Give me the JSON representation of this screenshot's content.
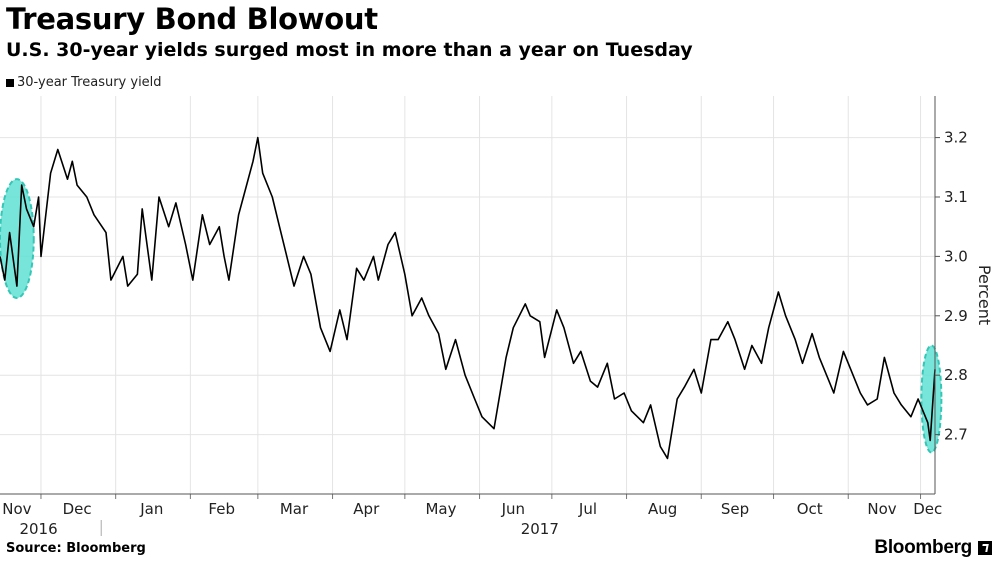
{
  "header": {
    "title": "Treasury Bond Blowout",
    "subtitle": "U.S. 30-year yields surged most in more than a year on Tuesday"
  },
  "footer": {
    "source": "Source: Bloomberg",
    "brand": "Bloomberg"
  },
  "colors": {
    "line": "#000000",
    "highlight_fill": "#5fe0d2",
    "highlight_stroke": "#35c6b6",
    "grid": "#e4e4e4"
  },
  "chart_data": {
    "type": "line",
    "title": "Treasury Bond Blowout",
    "subtitle": "U.S. 30-year yields surged most in more than a year on Tuesday",
    "xlabel": "",
    "ylabel": "Percent",
    "ylim": [
      2.6,
      3.27
    ],
    "yticks": [
      2.7,
      2.8,
      2.9,
      3.0,
      3.1,
      3.2
    ],
    "ytick_labels": [
      "2.7",
      "2.8",
      "2.9",
      "3.0",
      "3.1",
      "3.2"
    ],
    "xlim": [
      "2016-11-14",
      "2017-12-07"
    ],
    "month_ticks": [
      {
        "label": "Nov",
        "date": "2016-11-21"
      },
      {
        "label": "Dec",
        "date": "2016-12-16"
      },
      {
        "label": "Jan",
        "date": "2017-01-16"
      },
      {
        "label": "Feb",
        "date": "2017-02-14"
      },
      {
        "label": "Mar",
        "date": "2017-03-16"
      },
      {
        "label": "Apr",
        "date": "2017-04-15"
      },
      {
        "label": "May",
        "date": "2017-05-16"
      },
      {
        "label": "Jun",
        "date": "2017-06-15"
      },
      {
        "label": "Jul",
        "date": "2017-07-16"
      },
      {
        "label": "Aug",
        "date": "2017-08-16"
      },
      {
        "label": "Sep",
        "date": "2017-09-15"
      },
      {
        "label": "Oct",
        "date": "2017-10-16"
      },
      {
        "label": "Nov",
        "date": "2017-11-15"
      },
      {
        "label": "Dec",
        "date": "2017-12-04"
      }
    ],
    "year_labels": [
      {
        "label": "2016",
        "date": "2016-11-30"
      },
      {
        "label": "2017",
        "date": "2017-06-26"
      }
    ],
    "grid": true,
    "legend": {
      "position": "top-left",
      "entries": [
        "30-year Treasury yield"
      ]
    },
    "series": [
      {
        "name": "30-year Treasury yield",
        "x": [
          "2016-11-14",
          "2016-11-16",
          "2016-11-18",
          "2016-11-21",
          "2016-11-23",
          "2016-11-25",
          "2016-11-28",
          "2016-11-30",
          "2016-12-01",
          "2016-12-05",
          "2016-12-08",
          "2016-12-12",
          "2016-12-14",
          "2016-12-16",
          "2016-12-20",
          "2016-12-23",
          "2016-12-28",
          "2016-12-30",
          "2017-01-04",
          "2017-01-06",
          "2017-01-10",
          "2017-01-12",
          "2017-01-16",
          "2017-01-19",
          "2017-01-23",
          "2017-01-26",
          "2017-01-30",
          "2017-02-02",
          "2017-02-06",
          "2017-02-09",
          "2017-02-13",
          "2017-02-15",
          "2017-02-17",
          "2017-02-21",
          "2017-02-23",
          "2017-02-27",
          "2017-03-01",
          "2017-03-03",
          "2017-03-07",
          "2017-03-10",
          "2017-03-13",
          "2017-03-16",
          "2017-03-20",
          "2017-03-23",
          "2017-03-27",
          "2017-03-31",
          "2017-04-04",
          "2017-04-07",
          "2017-04-11",
          "2017-04-14",
          "2017-04-18",
          "2017-04-20",
          "2017-04-24",
          "2017-04-27",
          "2017-05-01",
          "2017-05-04",
          "2017-05-08",
          "2017-05-11",
          "2017-05-15",
          "2017-05-18",
          "2017-05-22",
          "2017-05-26",
          "2017-05-30",
          "2017-06-02",
          "2017-06-07",
          "2017-06-12",
          "2017-06-15",
          "2017-06-20",
          "2017-06-22",
          "2017-06-26",
          "2017-06-28",
          "2017-07-03",
          "2017-07-06",
          "2017-07-10",
          "2017-07-13",
          "2017-07-17",
          "2017-07-20",
          "2017-07-24",
          "2017-07-27",
          "2017-07-31",
          "2017-08-03",
          "2017-08-08",
          "2017-08-11",
          "2017-08-15",
          "2017-08-18",
          "2017-08-22",
          "2017-08-25",
          "2017-08-29",
          "2017-09-01",
          "2017-09-05",
          "2017-09-08",
          "2017-09-12",
          "2017-09-15",
          "2017-09-19",
          "2017-09-22",
          "2017-09-26",
          "2017-09-29",
          "2017-10-03",
          "2017-10-06",
          "2017-10-10",
          "2017-10-13",
          "2017-10-17",
          "2017-10-20",
          "2017-10-24",
          "2017-10-26",
          "2017-10-30",
          "2017-11-02",
          "2017-11-06",
          "2017-11-09",
          "2017-11-13",
          "2017-11-16",
          "2017-11-20",
          "2017-11-23",
          "2017-11-27",
          "2017-11-30",
          "2017-12-04",
          "2017-12-05",
          "2017-12-06",
          "2017-12-07"
        ],
        "y": [
          3.0,
          2.96,
          3.04,
          2.95,
          3.12,
          3.08,
          3.05,
          3.1,
          3.0,
          3.14,
          3.18,
          3.13,
          3.16,
          3.12,
          3.1,
          3.07,
          3.04,
          2.96,
          3.0,
          2.95,
          2.97,
          3.08,
          2.96,
          3.1,
          3.05,
          3.09,
          3.02,
          2.96,
          3.07,
          3.02,
          3.05,
          3.0,
          2.96,
          3.07,
          3.1,
          3.16,
          3.2,
          3.14,
          3.1,
          3.05,
          3.0,
          2.95,
          3.0,
          2.97,
          2.88,
          2.84,
          2.91,
          2.86,
          2.98,
          2.96,
          3.0,
          2.96,
          3.02,
          3.04,
          2.97,
          2.9,
          2.93,
          2.9,
          2.87,
          2.81,
          2.86,
          2.8,
          2.76,
          2.73,
          2.71,
          2.83,
          2.88,
          2.92,
          2.9,
          2.89,
          2.83,
          2.91,
          2.88,
          2.82,
          2.84,
          2.79,
          2.78,
          2.82,
          2.76,
          2.77,
          2.74,
          2.72,
          2.75,
          2.68,
          2.66,
          2.76,
          2.78,
          2.81,
          2.77,
          2.86,
          2.86,
          2.89,
          2.86,
          2.81,
          2.85,
          2.82,
          2.88,
          2.94,
          2.9,
          2.86,
          2.82,
          2.87,
          2.83,
          2.79,
          2.77,
          2.84,
          2.81,
          2.77,
          2.75,
          2.76,
          2.83,
          2.77,
          2.75,
          2.73,
          2.76,
          2.72,
          2.69,
          2.75,
          2.81
        ]
      }
    ],
    "highlights": [
      {
        "x_start": "2016-11-14",
        "x_end": "2016-11-28",
        "y_min": 2.93,
        "y_max": 3.13
      },
      {
        "x_start": "2017-12-03",
        "x_end": "2017-12-08",
        "y_min": 2.67,
        "y_max": 2.85
      }
    ]
  }
}
